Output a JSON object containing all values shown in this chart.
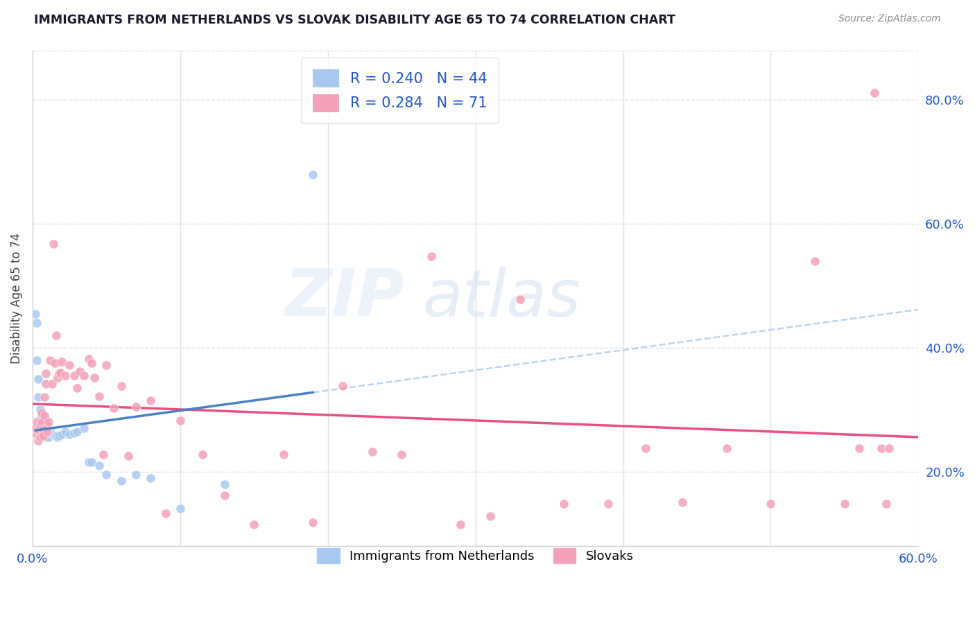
{
  "title": "IMMIGRANTS FROM NETHERLANDS VS SLOVAK DISABILITY AGE 65 TO 74 CORRELATION CHART",
  "source": "Source: ZipAtlas.com",
  "ylabel": "Disability Age 65 to 74",
  "xlim": [
    0.0,
    0.6
  ],
  "ylim": [
    0.08,
    0.88
  ],
  "right_yticks": [
    0.2,
    0.4,
    0.6,
    0.8
  ],
  "right_yticklabels": [
    "20.0%",
    "40.0%",
    "60.0%",
    "80.0%"
  ],
  "xticks": [
    0.0,
    0.1,
    0.2,
    0.3,
    0.4,
    0.5,
    0.6
  ],
  "series1_label": "Immigrants from Netherlands",
  "series1_R": "0.240",
  "series1_N": "44",
  "series1_color": "#a8c8f0",
  "series1_line_color": "#4a80c8",
  "series1_dash_color": "#b8d4f0",
  "series2_label": "Slovaks",
  "series2_R": "0.284",
  "series2_N": "71",
  "series2_color": "#f4a0b8",
  "series2_line_color": "#e85080",
  "legend_R_color": "#2255cc",
  "background_color": "#ffffff",
  "grid_color": "#e0e0e8",
  "series1_x": [
    0.002,
    0.003,
    0.003,
    0.004,
    0.004,
    0.005,
    0.005,
    0.006,
    0.006,
    0.006,
    0.007,
    0.007,
    0.008,
    0.008,
    0.008,
    0.009,
    0.009,
    0.01,
    0.01,
    0.011,
    0.011,
    0.012,
    0.013,
    0.014,
    0.015,
    0.016,
    0.017,
    0.018,
    0.02,
    0.022,
    0.025,
    0.028,
    0.03,
    0.035,
    0.038,
    0.04,
    0.045,
    0.05,
    0.06,
    0.07,
    0.08,
    0.1,
    0.13,
    0.19
  ],
  "series1_y": [
    0.455,
    0.44,
    0.38,
    0.35,
    0.32,
    0.3,
    0.285,
    0.29,
    0.28,
    0.27,
    0.28,
    0.265,
    0.28,
    0.27,
    0.26,
    0.265,
    0.255,
    0.268,
    0.258,
    0.265,
    0.256,
    0.268,
    0.26,
    0.26,
    0.258,
    0.258,
    0.255,
    0.258,
    0.26,
    0.264,
    0.26,
    0.262,
    0.265,
    0.27,
    0.215,
    0.215,
    0.21,
    0.195,
    0.185,
    0.195,
    0.19,
    0.14,
    0.18,
    0.68
  ],
  "series2_x": [
    0.002,
    0.003,
    0.003,
    0.004,
    0.004,
    0.005,
    0.005,
    0.006,
    0.006,
    0.007,
    0.007,
    0.008,
    0.008,
    0.009,
    0.009,
    0.01,
    0.01,
    0.011,
    0.012,
    0.013,
    0.014,
    0.015,
    0.016,
    0.017,
    0.018,
    0.019,
    0.02,
    0.022,
    0.025,
    0.028,
    0.03,
    0.032,
    0.035,
    0.038,
    0.04,
    0.042,
    0.045,
    0.048,
    0.05,
    0.055,
    0.06,
    0.065,
    0.07,
    0.08,
    0.09,
    0.1,
    0.115,
    0.13,
    0.15,
    0.17,
    0.19,
    0.21,
    0.23,
    0.25,
    0.27,
    0.29,
    0.31,
    0.33,
    0.36,
    0.39,
    0.415,
    0.44,
    0.47,
    0.5,
    0.53,
    0.55,
    0.56,
    0.57,
    0.575,
    0.578,
    0.58
  ],
  "series2_y": [
    0.27,
    0.28,
    0.26,
    0.25,
    0.268,
    0.255,
    0.275,
    0.295,
    0.28,
    0.268,
    0.258,
    0.29,
    0.32,
    0.342,
    0.358,
    0.272,
    0.265,
    0.28,
    0.38,
    0.342,
    0.568,
    0.375,
    0.42,
    0.352,
    0.358,
    0.36,
    0.378,
    0.355,
    0.372,
    0.355,
    0.335,
    0.362,
    0.355,
    0.382,
    0.375,
    0.352,
    0.322,
    0.228,
    0.372,
    0.302,
    0.338,
    0.225,
    0.305,
    0.315,
    0.132,
    0.282,
    0.228,
    0.162,
    0.115,
    0.228,
    0.118,
    0.338,
    0.232,
    0.228,
    0.548,
    0.115,
    0.128,
    0.478,
    0.148,
    0.148,
    0.238,
    0.15,
    0.238,
    0.148,
    0.54,
    0.148,
    0.238,
    0.812,
    0.238,
    0.148,
    0.238
  ]
}
